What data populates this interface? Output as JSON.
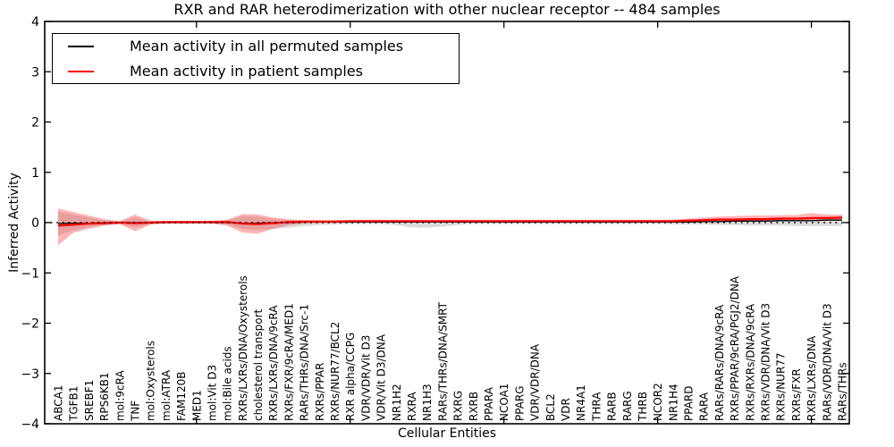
{
  "title": "RXR and RAR heterodimerization with other nuclear receptor -- 484 samples",
  "chart_data": {
    "type": "line",
    "title": "RXR and RAR heterodimerization with other nuclear receptor -- 484 samples",
    "xlabel": "Cellular Entities",
    "ylabel": "Inferred Activity",
    "ylim": [
      -4,
      4
    ],
    "yticks": [
      4,
      3,
      2,
      1,
      0,
      -1,
      -2,
      -3,
      -4
    ],
    "xtick_positions": [
      10,
      20,
      30,
      40,
      50
    ],
    "grid": false,
    "legend_position": "upper left",
    "zero_line": {
      "style": "dotted",
      "color": "#000000"
    },
    "categories": [
      "ABCA1",
      "TGFB1",
      "SREBF1",
      "RPS6KB1",
      "mol:9cRA",
      "TNF",
      "mol:Oxysterols",
      "mol:ATRA",
      "FAM120B",
      "MED1",
      "mol:Vit D3",
      "mol:Bile acids",
      "RXRs/LXRs/DNA/Oxysterols",
      "cholesterol transport",
      "RXRs/LXRs/DNA/9cRA",
      "RXRs/FXR/9cRA/MED1",
      "RARs/THRs/DNA/Src-1",
      "RXRs/PPAR",
      "RXRs/NUR77/BCL2",
      "RXR alpha/CCPG",
      "VDR/VDR/Vit D3",
      "VDR/Vit D3/DNA",
      "NR1H2",
      "RXRA",
      "NR1H3",
      "RARs/THRs/DNA/SMRT",
      "RXRG",
      "RXRB",
      "PPARA",
      "NCOA1",
      "PPARG",
      "VDR/VDR/DNA",
      "BCL2",
      "VDR",
      "NR4A1",
      "THRA",
      "RARB",
      "RARG",
      "THRB",
      "NCOR2",
      "NR1H4",
      "PPARD",
      "RARA",
      "RARs/RARs/DNA/9cRA",
      "RXRs/PPAR/9cRA/PGJ2/DNA",
      "RXRs/RXRs/DNA/9cRA",
      "RXRs/VDR/DNA/Vit D3",
      "RXRs/NUR77",
      "RXRs/FXR",
      "RXRs/LXRs/DNA",
      "RARs/VDR/DNA/Vit D3",
      "RARs/THRs"
    ],
    "series": [
      {
        "name": "Mean activity in all permuted samples",
        "color": "#000000",
        "width": 1.3,
        "values": [
          -0.02,
          -0.01,
          -0.01,
          0,
          0,
          0,
          0,
          0,
          0,
          0,
          0,
          0,
          -0.01,
          -0.01,
          0,
          0,
          0.01,
          0.01,
          0.01,
          0.01,
          0.01,
          0.01,
          0.01,
          0.01,
          0.01,
          0.01,
          0.01,
          0.01,
          0.01,
          0.01,
          0.01,
          0.01,
          0.01,
          0.01,
          0.01,
          0.01,
          0.01,
          0.01,
          0.01,
          0.01,
          0.01,
          0.01,
          0.02,
          0.02,
          0.03,
          0.03,
          0.03,
          0.04,
          0.04,
          0.04,
          0.05,
          0.05
        ]
      },
      {
        "name": "Mean activity in patient samples",
        "color": "#ff0000",
        "width": 2.2,
        "values": [
          -0.06,
          -0.04,
          -0.02,
          -0.01,
          0,
          -0.01,
          0,
          0.01,
          0.01,
          0.01,
          0.01,
          0.01,
          -0.02,
          -0.03,
          -0.01,
          0.01,
          0.02,
          0.02,
          0.02,
          0.03,
          0.03,
          0.03,
          0.03,
          0.03,
          0.03,
          0.03,
          0.03,
          0.03,
          0.03,
          0.03,
          0.03,
          0.03,
          0.03,
          0.03,
          0.03,
          0.03,
          0.03,
          0.03,
          0.03,
          0.03,
          0.03,
          0.04,
          0.05,
          0.06,
          0.06,
          0.07,
          0.07,
          0.08,
          0.08,
          0.09,
          0.09,
          0.1
        ]
      }
    ],
    "bands": [
      {
        "name": "permuted-samples-std-band",
        "color": "#8c8c8c",
        "opacity": 0.3,
        "upper": [
          0.22,
          0.16,
          0.1,
          0.05,
          0.02,
          0.1,
          0.03,
          0.02,
          0.02,
          0.02,
          0.02,
          0.04,
          0.13,
          0.12,
          0.08,
          0.05,
          0.04,
          0.03,
          0.03,
          0.03,
          0.03,
          0.03,
          0.04,
          0.05,
          0.05,
          0.04,
          0.03,
          0.03,
          0.03,
          0.03,
          0.03,
          0.03,
          0.03,
          0.03,
          0.03,
          0.03,
          0.03,
          0.03,
          0.03,
          0.03,
          0.04,
          0.05,
          0.06,
          0.07,
          0.07,
          0.08,
          0.08,
          0.08,
          0.08,
          0.09,
          0.09,
          0.09
        ],
        "lower": [
          -0.26,
          -0.15,
          -0.09,
          -0.05,
          -0.02,
          -0.1,
          -0.03,
          -0.02,
          -0.02,
          -0.02,
          -0.02,
          -0.04,
          -0.13,
          -0.15,
          -0.13,
          -0.1,
          -0.07,
          -0.05,
          -0.04,
          -0.03,
          -0.03,
          -0.03,
          -0.05,
          -0.1,
          -0.1,
          -0.08,
          -0.05,
          -0.03,
          -0.03,
          -0.03,
          -0.03,
          -0.03,
          -0.03,
          -0.03,
          -0.03,
          -0.03,
          -0.03,
          -0.03,
          -0.03,
          -0.03,
          -0.04,
          -0.04,
          -0.04,
          -0.05,
          -0.05,
          -0.06,
          -0.06,
          -0.06,
          -0.07,
          -0.07,
          -0.07,
          -0.07
        ]
      },
      {
        "name": "patient-samples-std-band",
        "color": "#ff2a2a",
        "opacity": 0.35,
        "upper": [
          0.28,
          0.21,
          0.14,
          0.07,
          0.03,
          0.16,
          0.04,
          0.03,
          0.03,
          0.03,
          0.03,
          0.06,
          0.17,
          0.16,
          0.1,
          0.07,
          0.05,
          0.05,
          0.05,
          0.05,
          0.05,
          0.05,
          0.05,
          0.05,
          0.05,
          0.05,
          0.05,
          0.05,
          0.05,
          0.05,
          0.05,
          0.05,
          0.05,
          0.05,
          0.05,
          0.05,
          0.05,
          0.05,
          0.05,
          0.05,
          0.06,
          0.08,
          0.1,
          0.12,
          0.13,
          0.14,
          0.14,
          0.15,
          0.15,
          0.19,
          0.16,
          0.16
        ],
        "lower": [
          -0.45,
          -0.2,
          -0.12,
          -0.06,
          -0.03,
          -0.17,
          -0.04,
          -0.02,
          -0.02,
          -0.02,
          -0.02,
          -0.06,
          -0.2,
          -0.22,
          -0.12,
          -0.05,
          -0.02,
          -0.01,
          -0.01,
          0,
          0,
          0,
          0,
          0,
          0,
          0,
          0,
          0,
          0,
          0,
          0,
          0,
          0,
          0,
          0,
          0,
          0,
          0,
          0,
          0,
          0,
          0.01,
          0.01,
          0.01,
          0.02,
          0.02,
          0.02,
          0.03,
          0.03,
          0.04,
          0.04,
          0.05
        ]
      }
    ]
  }
}
